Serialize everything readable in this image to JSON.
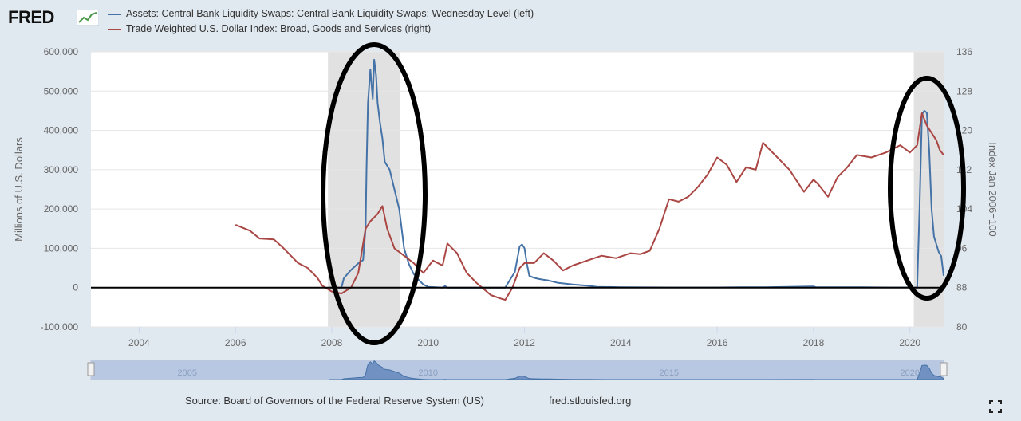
{
  "logo": {
    "text": "FRED"
  },
  "legend": [
    {
      "label": "Assets: Central Bank Liquidity Swaps: Central Bank Liquidity Swaps: Wednesday Level (left)",
      "color": "#4572a7"
    },
    {
      "label": "Trade Weighted U.S. Dollar Index: Broad, Goods and Services (right)",
      "color": "#aa4643"
    }
  ],
  "source_text": "Source: Board of Governors of the Federal Reserve System (US)",
  "site_text": "fred.stlouisfed.org",
  "colors": {
    "swaps": "#4572a7",
    "dollar": "#aa4643",
    "recession": "#e1e1e1",
    "background": "#e1e9f0"
  },
  "chart_data": {
    "type": "line",
    "title": "",
    "xlabel": "",
    "ylabel": "Millions of U.S. Dollars",
    "y2label": "Index Jan 2006=100",
    "xlim": [
      2003.0,
      2020.7
    ],
    "ylim": [
      -100000,
      600000
    ],
    "y2lim": [
      80,
      136
    ],
    "x_ticks": [
      "2004",
      "2006",
      "2008",
      "2010",
      "2012",
      "2014",
      "2016",
      "2018",
      "2020"
    ],
    "y_ticks": [
      "-100,000",
      "0",
      "100,000",
      "200,000",
      "300,000",
      "400,000",
      "500,000",
      "600,000"
    ],
    "y2_ticks": [
      "80",
      "88",
      "96",
      "104",
      "112",
      "120",
      "128",
      "136"
    ],
    "recessions": [
      [
        2007.92,
        2009.42
      ],
      [
        2020.08,
        2020.7
      ]
    ],
    "zero_line": 0,
    "series": [
      {
        "name": "Assets: Central Bank Liquidity Swaps: Central Bank Liquidity Swaps: Wednesday Level (left)",
        "axis": "left",
        "x": [
          2007.95,
          2008.2,
          2008.25,
          2008.4,
          2008.55,
          2008.65,
          2008.7,
          2008.72,
          2008.75,
          2008.8,
          2008.85,
          2008.88,
          2008.92,
          2008.95,
          2009.0,
          2009.05,
          2009.1,
          2009.2,
          2009.3,
          2009.4,
          2009.5,
          2009.6,
          2009.7,
          2009.8,
          2009.9,
          2010.0,
          2010.3,
          2010.35,
          2010.4,
          2010.5,
          2011.0,
          2011.6,
          2011.8,
          2011.9,
          2011.95,
          2012.0,
          2012.05,
          2012.1,
          2012.2,
          2012.3,
          2012.4,
          2012.5,
          2012.7,
          2013.0,
          2013.3,
          2013.5,
          2014.0,
          2015.0,
          2016.0,
          2016.5,
          2017.0,
          2018.0,
          2018.05,
          2019.0,
          2019.5,
          2020.0,
          2020.15,
          2020.2,
          2020.25,
          2020.3,
          2020.35,
          2020.4,
          2020.45,
          2020.5,
          2020.55,
          2020.6,
          2020.65,
          2020.7
        ],
        "values": [
          0,
          0,
          24000,
          45000,
          62000,
          70000,
          150000,
          300000,
          470000,
          555000,
          480000,
          580000,
          540000,
          470000,
          420000,
          380000,
          320000,
          300000,
          250000,
          200000,
          100000,
          60000,
          35000,
          20000,
          8000,
          2000,
          0,
          4000,
          0,
          0,
          0,
          0,
          40000,
          105000,
          110000,
          100000,
          60000,
          30000,
          25000,
          22000,
          20000,
          18000,
          12000,
          8000,
          5000,
          2000,
          1000,
          500,
          500,
          1000,
          800,
          3000,
          1000,
          1000,
          500,
          500,
          0,
          200000,
          440000,
          450000,
          445000,
          350000,
          200000,
          130000,
          110000,
          90000,
          80000,
          30000
        ]
      },
      {
        "name": "Trade Weighted U.S. Dollar Index: Broad, Goods and Services (right)",
        "axis": "right",
        "x": [
          2006.0,
          2006.3,
          2006.5,
          2006.8,
          2007.0,
          2007.3,
          2007.5,
          2007.7,
          2007.8,
          2008.0,
          2008.2,
          2008.4,
          2008.55,
          2008.7,
          2008.8,
          2008.95,
          2009.05,
          2009.15,
          2009.3,
          2009.5,
          2009.7,
          2009.9,
          2010.1,
          2010.3,
          2010.4,
          2010.6,
          2010.8,
          2011.0,
          2011.3,
          2011.5,
          2011.6,
          2011.75,
          2011.9,
          2012.0,
          2012.2,
          2012.4,
          2012.6,
          2012.8,
          2013.0,
          2013.3,
          2013.6,
          2013.9,
          2014.2,
          2014.4,
          2014.6,
          2014.8,
          2015.0,
          2015.2,
          2015.4,
          2015.6,
          2015.8,
          2016.0,
          2016.2,
          2016.4,
          2016.6,
          2016.8,
          2016.95,
          2017.2,
          2017.5,
          2017.8,
          2018.0,
          2018.1,
          2018.3,
          2018.5,
          2018.7,
          2018.9,
          2019.2,
          2019.5,
          2019.8,
          2020.0,
          2020.15,
          2020.25,
          2020.35,
          2020.45,
          2020.55,
          2020.62,
          2020.7
        ],
        "values": [
          100.8,
          99.6,
          98.0,
          97.8,
          96.0,
          93.0,
          92.0,
          90.0,
          88.4,
          87.2,
          86.8,
          88.0,
          91.0,
          100.0,
          101.5,
          103.0,
          104.6,
          100.0,
          96.0,
          94.5,
          93.0,
          91.0,
          93.5,
          92.5,
          97.0,
          95.0,
          91.0,
          89.0,
          86.5,
          85.8,
          85.5,
          88.0,
          92.0,
          93.0,
          93.0,
          95.0,
          93.5,
          91.5,
          92.5,
          93.5,
          94.5,
          94.0,
          95.0,
          94.8,
          95.5,
          100.0,
          106.0,
          105.5,
          106.5,
          108.5,
          111.0,
          114.5,
          113.0,
          109.5,
          112.5,
          112.0,
          117.5,
          115.0,
          112.0,
          107.5,
          110.0,
          109.0,
          106.5,
          110.5,
          112.5,
          115.0,
          114.5,
          115.5,
          117.0,
          115.5,
          117.0,
          123.5,
          121.0,
          119.5,
          118.0,
          116.0,
          115.0
        ]
      }
    ],
    "navigator": {
      "labels": [
        "2005",
        "2010",
        "2015",
        "2020"
      ]
    }
  }
}
